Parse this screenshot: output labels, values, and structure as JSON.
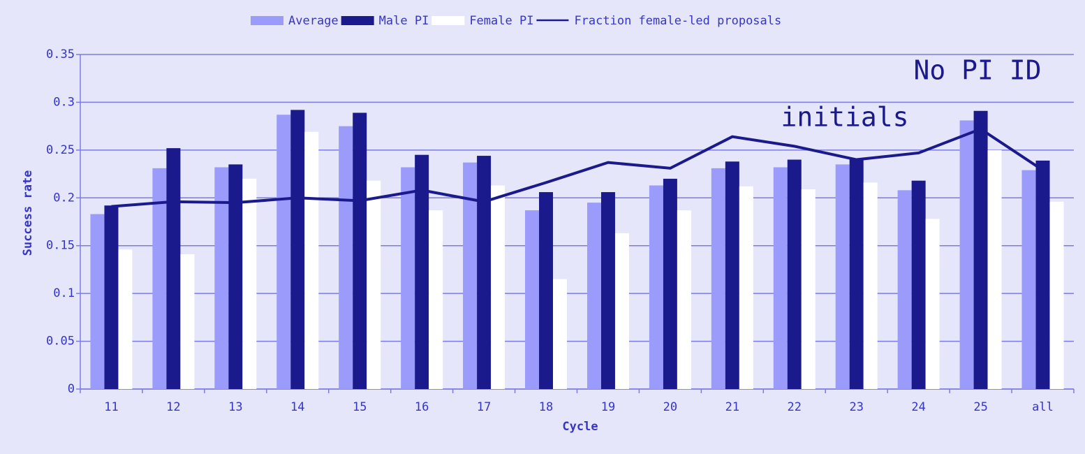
{
  "chart_data": {
    "type": "bar",
    "x_label": "Cycle",
    "y_label": "Success rate",
    "categories": [
      "11",
      "12",
      "13",
      "14",
      "15",
      "16",
      "17",
      "18",
      "19",
      "20",
      "21",
      "22",
      "23",
      "24",
      "25",
      "all"
    ],
    "series": [
      {
        "name": "Average",
        "color": "#9b9bfb",
        "values": [
          0.183,
          0.231,
          0.232,
          0.287,
          0.275,
          0.232,
          0.237,
          0.187,
          0.195,
          0.213,
          0.231,
          0.232,
          0.235,
          0.208,
          0.281,
          0.229
        ]
      },
      {
        "name": "Male PI",
        "color": "#1a1a8c",
        "values": [
          0.192,
          0.252,
          0.235,
          0.292,
          0.289,
          0.245,
          0.244,
          0.206,
          0.206,
          0.22,
          0.238,
          0.24,
          0.24,
          0.218,
          0.291,
          0.239
        ]
      },
      {
        "name": "Female PI",
        "color": "#ffffff",
        "values": [
          0.146,
          0.141,
          0.22,
          0.269,
          0.218,
          0.187,
          0.213,
          0.115,
          0.163,
          0.187,
          0.212,
          0.209,
          0.216,
          0.178,
          0.25,
          0.196
        ]
      },
      {
        "name": "Fraction female-led proposals",
        "color": "#1a1a8c",
        "type": "line",
        "values": [
          0.191,
          0.196,
          0.195,
          0.2,
          0.197,
          0.208,
          0.196,
          0.216,
          0.237,
          0.231,
          0.264,
          0.254,
          0.24,
          0.247,
          0.272,
          0.229
        ]
      }
    ],
    "annotations": [
      "No PI ID",
      "initials"
    ],
    "ylim": [
      0,
      0.35
    ],
    "yticks": [
      0,
      0.05,
      0.1,
      0.15,
      0.2,
      0.25,
      0.3,
      0.35
    ],
    "grid": true,
    "legend": "top"
  }
}
